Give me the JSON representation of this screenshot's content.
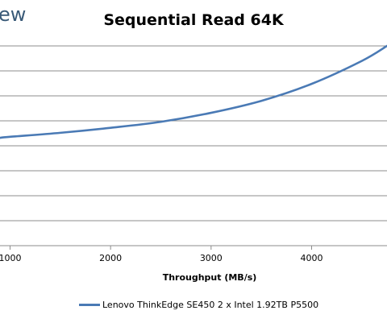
{
  "logo_text": "ew",
  "chart_data": {
    "type": "line",
    "title": "Sequential Read 64K",
    "xlabel": "Throughput (MB/s)",
    "ylabel": "",
    "x_ticks": [
      "1000",
      "2000",
      "3000",
      "4000"
    ],
    "xlim": [
      900,
      4750
    ],
    "ylim": [
      0,
      1
    ],
    "grid": true,
    "legend_position": "bottom",
    "series": [
      {
        "name": "Lenovo ThinkEdge SE450 2 x Intel 1.92TB P5500",
        "color": "#4a7ab5",
        "x": [
          900,
          1000,
          1500,
          2000,
          2500,
          3000,
          3500,
          4000,
          4500,
          4750
        ],
        "y": [
          0.54,
          0.545,
          0.565,
          0.59,
          0.62,
          0.665,
          0.725,
          0.81,
          0.925,
          1.0
        ]
      }
    ]
  }
}
